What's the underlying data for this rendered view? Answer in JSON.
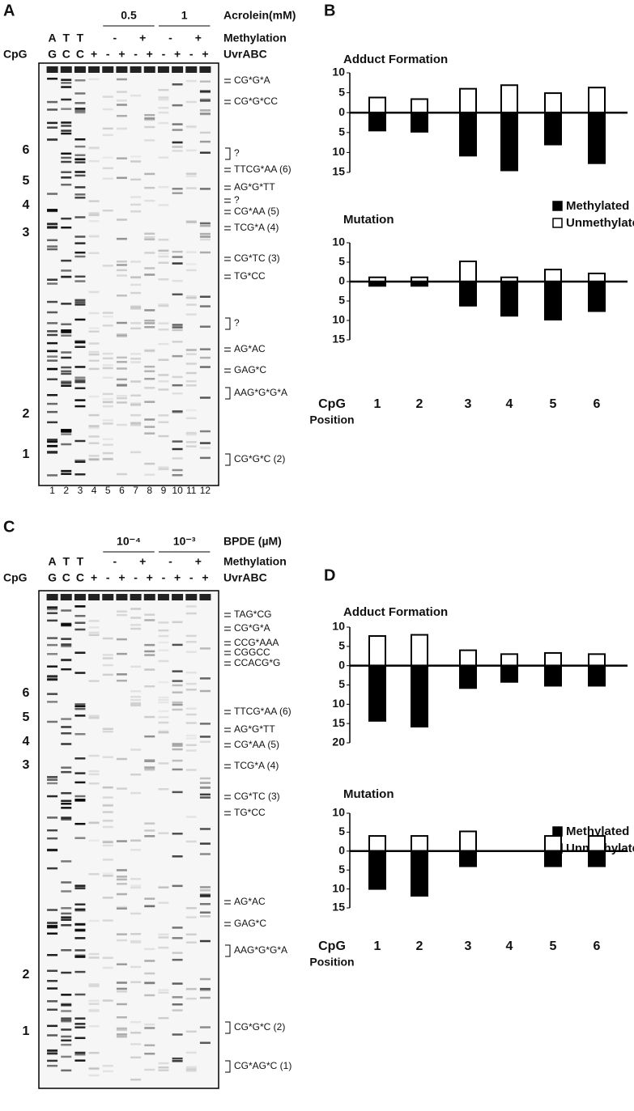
{
  "gels": [
    {
      "letter": "A",
      "treatment": "Acrolein(mM)",
      "doses": [
        "0.5",
        "1"
      ],
      "methylation_label": "Methylation",
      "methylation": [
        "-",
        "+",
        "-",
        "+"
      ],
      "uvr_label": "UvrABC",
      "uvr": [
        "+",
        "-",
        "+",
        "-",
        "+",
        "-",
        "+",
        "-",
        "+"
      ],
      "seq_top": [
        "A",
        "T",
        "T"
      ],
      "seq_bottom": [
        "G",
        "C",
        "C"
      ],
      "cpg_label": "CpG",
      "cpg_numbers": [
        "6",
        "5",
        "4",
        "3",
        "2",
        "1"
      ],
      "annotations": [
        "CG*G*A",
        "CG*G*CC",
        "?",
        "TTCG*AA (6)",
        "AG*G*TT",
        "?",
        "CG*AA (5)",
        "TCG*A (4)",
        "CG*TC (3)",
        "TG*CC",
        "?",
        "AG*AC",
        "GAG*C",
        "AAG*G*G*A",
        "CG*G*C (2)"
      ],
      "lane_numbers": [
        "1",
        "2",
        "3",
        "4",
        "5",
        "6",
        "7",
        "8",
        "9",
        "10",
        "11",
        "12"
      ]
    },
    {
      "letter": "C",
      "treatment": "BPDE (µM)",
      "doses": [
        "10⁻⁴",
        "10⁻³"
      ],
      "methylation_label": "Methylation",
      "methylation": [
        "-",
        "+",
        "-",
        "+"
      ],
      "uvr_label": "UvrABC",
      "uvr": [
        "+",
        "-",
        "+",
        "-",
        "+",
        "-",
        "+",
        "-",
        "+"
      ],
      "seq_top": [
        "A",
        "T",
        "T"
      ],
      "seq_bottom": [
        "G",
        "C",
        "C"
      ],
      "cpg_label": "CpG",
      "cpg_numbers": [
        "6",
        "5",
        "4",
        "3",
        "2",
        "1"
      ],
      "annotations": [
        "TAG*CG",
        "CG*G*A",
        "CCG*AAA",
        "CGGCC",
        "CCACG*G",
        "TTCG*AA (6)",
        "AG*G*TT",
        "CG*AA (5)",
        "TCG*A (4)",
        "CG*TC (3)",
        "TG*CC",
        "AG*AC",
        "GAG*C",
        "AAG*G*G*A",
        "CG*G*C (2)",
        "CG*AG*C (1)"
      ]
    }
  ],
  "panels": {
    "b": "B",
    "d": "D"
  },
  "x_label": [
    "CpG",
    "Position"
  ],
  "chart_data": [
    {
      "type": "bar",
      "title": "Adduct Formation",
      "ylim": [
        -15,
        10
      ],
      "yticks": [
        10,
        5,
        0,
        {
          "value": -5,
          "label": "5"
        },
        {
          "value": -10,
          "label": "10"
        },
        {
          "value": -15,
          "label": "15"
        }
      ],
      "series": [
        {
          "name": "Methylated",
          "color": "#000000",
          "values": [
            -4.5,
            -4.8,
            -10.8,
            -14.5,
            -8,
            -12.7
          ]
        },
        {
          "name": "Unmethylated",
          "color": "#ffffff",
          "values": [
            3.8,
            3.4,
            6,
            6.9,
            4.9,
            6.3
          ]
        }
      ]
    },
    {
      "type": "bar",
      "title": "Mutation",
      "ylim": [
        -15,
        10
      ],
      "categories": [
        "1",
        "2",
        "3",
        "4",
        "5",
        "6"
      ],
      "yticks": [
        10,
        5,
        0,
        {
          "value": -5,
          "label": "5"
        },
        {
          "value": -10,
          "label": "10"
        },
        {
          "value": -15,
          "label": "15"
        }
      ],
      "series": [
        {
          "color": "#000000",
          "values": [
            -1.1,
            -1.1,
            -6.2,
            -8.8,
            -9.8,
            -7.6
          ]
        },
        {
          "color": "#ffffff",
          "values": [
            1.1,
            1.1,
            5.2,
            1.1,
            3.1,
            2.1
          ]
        }
      ]
    },
    {
      "type": "bar",
      "title": "Adduct Formation",
      "ylim": [
        -20,
        10
      ],
      "yticks": [
        10,
        5,
        0,
        {
          "value": -5,
          "label": "5"
        },
        {
          "value": -10,
          "label": "10"
        },
        {
          "value": -15,
          "label": "15"
        },
        {
          "value": -20,
          "label": "20"
        }
      ],
      "series": [
        {
          "name": "Methylated",
          "color": "#000000",
          "values": [
            -14.3,
            -15.8,
            -5.8,
            -4.2,
            -5.2,
            -5.2
          ]
        },
        {
          "name": "Unmethylated",
          "color": "#ffffff",
          "values": [
            7.7,
            8,
            4,
            3,
            3.3,
            3
          ]
        }
      ]
    },
    {
      "type": "bar",
      "title": "Mutation",
      "ylim": [
        -15,
        10
      ],
      "categories": [
        "1",
        "2",
        "3",
        "4",
        "5",
        "6"
      ],
      "yticks": [
        10,
        5,
        0,
        {
          "value": -5,
          "label": "5"
        },
        {
          "value": -10,
          "label": "10"
        },
        {
          "value": -15,
          "label": "15"
        }
      ],
      "series": [
        {
          "color": "#000000",
          "values": [
            -10,
            -11.8,
            -4,
            0,
            -4,
            -4
          ]
        },
        {
          "color": "#ffffff",
          "values": [
            4,
            4,
            5.2,
            0,
            4,
            4
          ]
        }
      ]
    }
  ]
}
